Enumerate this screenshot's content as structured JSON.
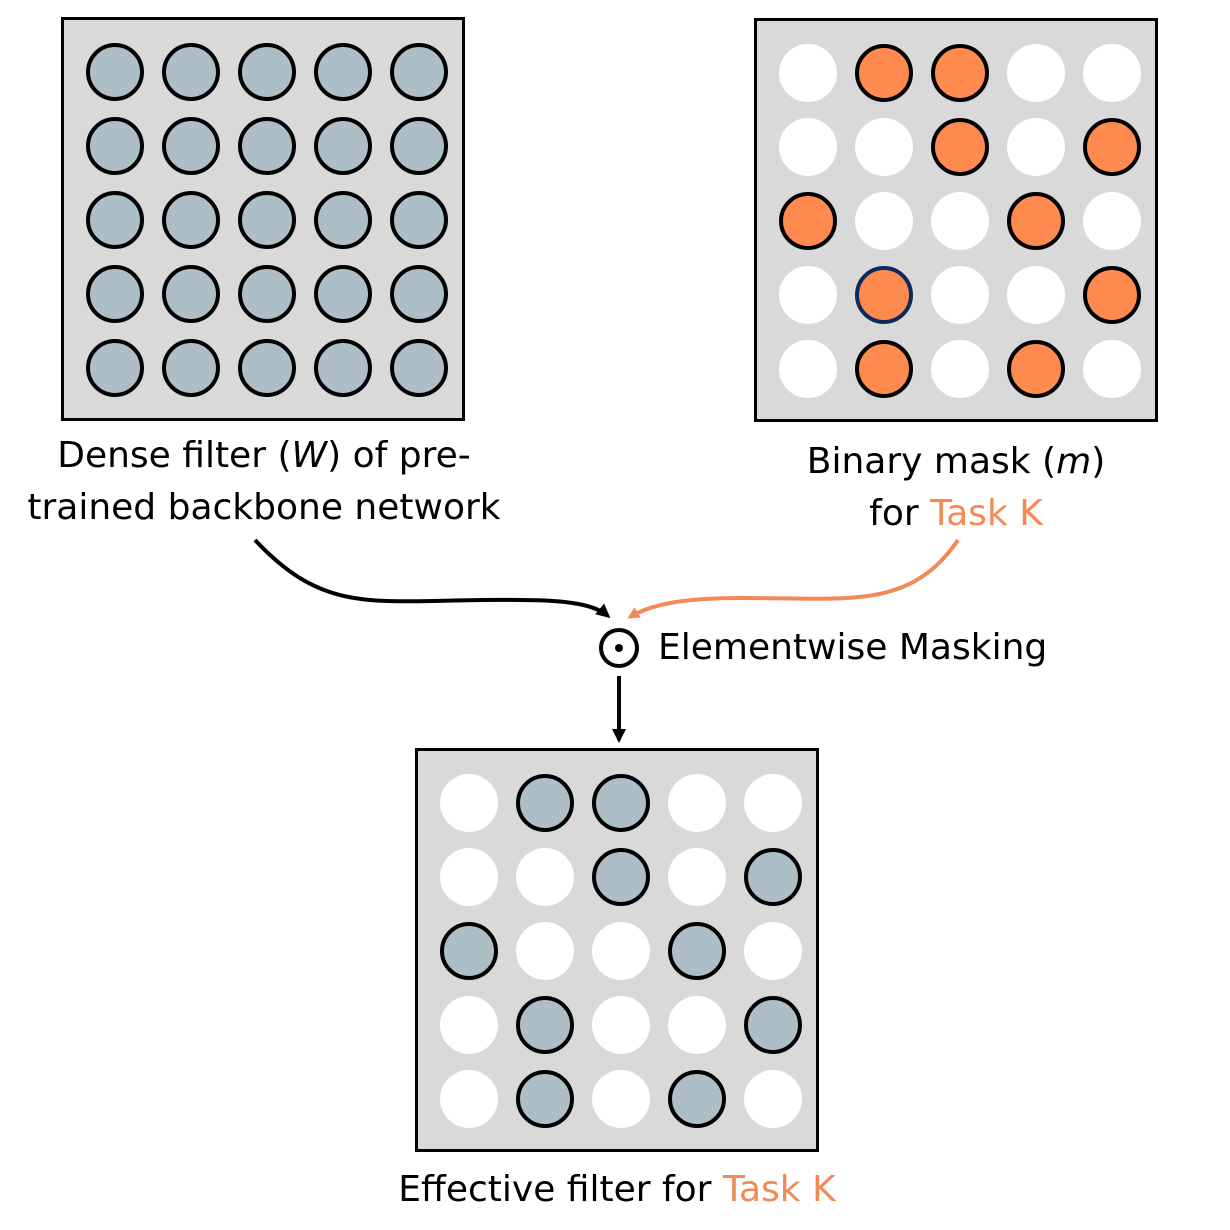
{
  "colors": {
    "panel_bg": "#d9d9d9",
    "weight_fill": "#adbec6",
    "mask_fill": "#ff8a50",
    "mask_highlight_border": "#0d2a5c",
    "task_accent": "#f28a55",
    "arrow_black": "#000000",
    "arrow_orange": "#f28a55"
  },
  "dense_filter": {
    "grid": [
      [
        1,
        1,
        1,
        1,
        1
      ],
      [
        1,
        1,
        1,
        1,
        1
      ],
      [
        1,
        1,
        1,
        1,
        1
      ],
      [
        1,
        1,
        1,
        1,
        1
      ],
      [
        1,
        1,
        1,
        1,
        1
      ]
    ],
    "caption_line1_pre": "Dense filter (",
    "caption_symbol": "W",
    "caption_line1_post": ") of pre-",
    "caption_line2": "trained backbone network"
  },
  "binary_mask": {
    "grid": [
      [
        0,
        1,
        1,
        0,
        0
      ],
      [
        0,
        0,
        1,
        0,
        1
      ],
      [
        1,
        0,
        0,
        1,
        0
      ],
      [
        0,
        1,
        0,
        0,
        1
      ],
      [
        0,
        1,
        0,
        1,
        0
      ]
    ],
    "highlighted_cell": [
      3,
      1
    ],
    "caption_line1_pre": "Binary mask (",
    "caption_symbol": "m",
    "caption_line1_post": ")",
    "caption_line2_pre": "for ",
    "caption_task": "Task K"
  },
  "operation": {
    "symbol": "⊙",
    "label": "Elementwise Masking"
  },
  "effective_filter": {
    "grid": [
      [
        0,
        1,
        1,
        0,
        0
      ],
      [
        0,
        0,
        1,
        0,
        1
      ],
      [
        1,
        0,
        0,
        1,
        0
      ],
      [
        0,
        1,
        0,
        0,
        1
      ],
      [
        0,
        1,
        0,
        1,
        0
      ]
    ],
    "caption_pre": "Effective filter for ",
    "caption_task": "Task K"
  }
}
